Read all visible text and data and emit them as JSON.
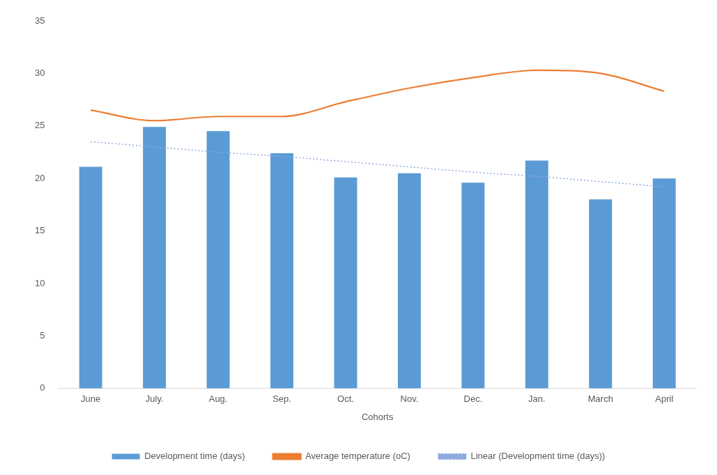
{
  "chart_data": {
    "type": "bar",
    "xlabel": "Cohorts",
    "categories": [
      "June",
      "July.",
      "Aug.",
      "Sep.",
      "Oct.",
      "Nov.",
      "Dec.",
      "Jan.",
      "March",
      "April"
    ],
    "series": [
      {
        "name": "Development time (days)",
        "color": "#5b9bd5",
        "values": [
          21.1,
          24.9,
          24.5,
          22.4,
          20.1,
          20.5,
          19.6,
          21.7,
          18.0,
          20.0
        ]
      },
      {
        "name": "Average temperature (oC)",
        "type": "line",
        "color": "#ed7d31",
        "values": [
          26.5,
          25.5,
          25.9,
          25.9,
          27.3,
          28.6,
          29.6,
          30.3,
          30.0,
          28.3
        ]
      },
      {
        "name": "Linear (Development time (days))",
        "type": "line",
        "line_style": "dotted",
        "color": "#8faadc",
        "values": [
          23.5,
          23.0,
          22.5,
          22.1,
          21.6,
          21.1,
          20.6,
          20.2,
          19.7,
          19.2
        ]
      }
    ],
    "ylim": [
      0,
      35
    ],
    "yticks": [
      0,
      5,
      10,
      15,
      20,
      25,
      30,
      35
    ],
    "grid": false,
    "legend": "bottom",
    "marker": "none"
  }
}
